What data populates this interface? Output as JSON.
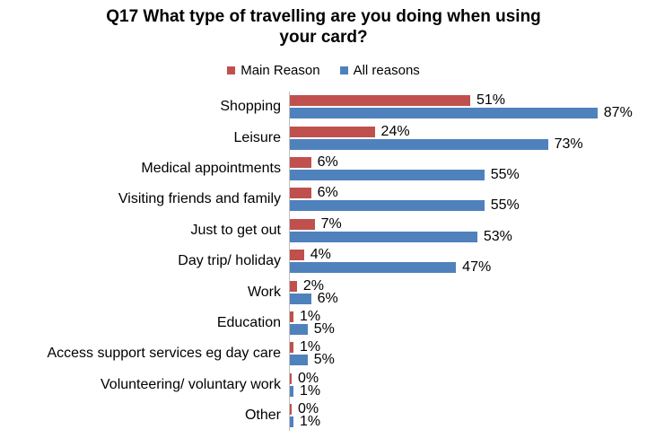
{
  "header": {
    "title_line1": "Q17 What type of travelling are you doing when using",
    "title_line2": "your card?"
  },
  "chart_data": {
    "type": "bar",
    "orientation": "horizontal",
    "title": "Q17 What type of travelling are you doing when using your card?",
    "categories": [
      "Shopping",
      "Leisure",
      "Medical appointments",
      "Visiting friends and family",
      "Just to get out",
      "Day trip/ holiday",
      "Work",
      "Education",
      "Access support services eg day care",
      "Volunteering/ voluntary work",
      "Other"
    ],
    "series": [
      {
        "name": "Main Reason",
        "color": "#C0504D",
        "values": [
          51,
          24,
          6,
          6,
          7,
          4,
          2,
          1,
          1,
          0,
          0
        ]
      },
      {
        "name": "All reasons",
        "color": "#4F81BD",
        "values": [
          87,
          73,
          55,
          55,
          53,
          47,
          6,
          5,
          5,
          1,
          1
        ]
      }
    ],
    "value_suffix": "%",
    "xlim": [
      0,
      100
    ],
    "legend_position": "top",
    "grid": false,
    "axis_color": "#BFBFBF",
    "data_labels": true
  }
}
